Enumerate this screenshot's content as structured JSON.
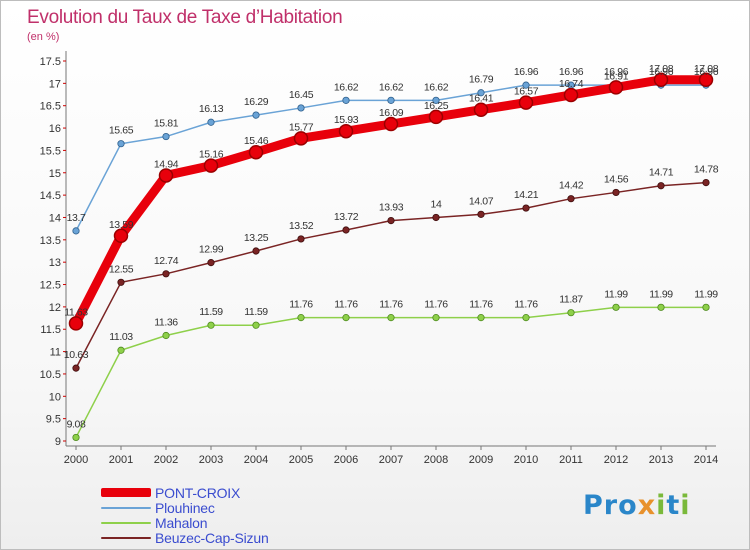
{
  "header": {
    "title": "Evolution du Taux de Taxe d’Habitation",
    "unit": "(en %)"
  },
  "logo": {
    "text": "Proxiti",
    "letters": [
      "P",
      "r",
      "o",
      "x",
      "i",
      "t",
      "i"
    ],
    "colors": [
      "#2a86c9",
      "#2a86c9",
      "#2a86c9",
      "#e8912c",
      "#7ab93a",
      "#2a86c9",
      "#7ab93a"
    ]
  },
  "chart_data": {
    "type": "line",
    "title": "Evolution du Taux de Taxe d’Habitation",
    "ylabel": "(en %)",
    "xlabel": "",
    "x": [
      "2000",
      "2001",
      "2002",
      "2003",
      "2004",
      "2005",
      "2006",
      "2007",
      "2008",
      "2009",
      "2010",
      "2011",
      "2012",
      "2013",
      "2014"
    ],
    "ylim": [
      9,
      17.5
    ],
    "yticks": [
      "9",
      "9.5",
      "10",
      "10.5",
      "11",
      "11.5",
      "12",
      "12.5",
      "13",
      "13.5",
      "14",
      "14.5",
      "15",
      "15.5",
      "16",
      "16.5",
      "17",
      "17.5"
    ],
    "grid": false,
    "legend": "bottom-left",
    "series": [
      {
        "name": "PONT-CROIX",
        "color": "#e8000b",
        "values": [
          11.63,
          13.59,
          14.94,
          15.16,
          15.46,
          15.77,
          15.93,
          16.09,
          16.25,
          16.41,
          16.57,
          16.74,
          16.91,
          17.08,
          17.08
        ],
        "labels": [
          "11.63",
          "13.59",
          "14.94",
          "15.16",
          "15.46",
          "15.77",
          "15.93",
          "16.09",
          "16.25",
          "16.41",
          "16.57",
          "16.74",
          "16.91",
          "17.08",
          "17.08"
        ]
      },
      {
        "name": "Plouhinec",
        "color": "#6aa3d6",
        "values": [
          13.7,
          15.65,
          15.81,
          16.13,
          16.29,
          16.45,
          16.62,
          16.62,
          16.62,
          16.79,
          16.96,
          16.96,
          16.96,
          16.96,
          16.96
        ],
        "labels": [
          "13.7",
          "15.65",
          "15.81",
          "16.13",
          "16.29",
          "16.45",
          "16.62",
          "16.62",
          "16.62",
          "16.79",
          "16.96",
          "16.96",
          "16.96",
          "16.96",
          "16.96"
        ]
      },
      {
        "name": "Mahalon",
        "color": "#8ed04a",
        "values": [
          9.08,
          11.03,
          11.36,
          11.59,
          11.59,
          11.76,
          11.76,
          11.76,
          11.76,
          11.76,
          11.76,
          11.87,
          11.99,
          11.99,
          11.99
        ],
        "labels": [
          "9.08",
          "11.03",
          "11.36",
          "11.59",
          "11.59",
          "11.76",
          "11.76",
          "11.76",
          "11.76",
          "11.76",
          "11.76",
          "11.87",
          "11.99",
          "11.99",
          "11.99"
        ]
      },
      {
        "name": "Beuzec-Cap-Sizun",
        "color": "#7a2424",
        "values": [
          10.63,
          12.55,
          12.74,
          12.99,
          13.25,
          13.52,
          13.72,
          13.93,
          14,
          14.07,
          14.21,
          14.42,
          14.56,
          14.71,
          14.78
        ],
        "labels": [
          "10.63",
          "12.55",
          "12.74",
          "12.99",
          "13.25",
          "13.52",
          "13.72",
          "13.93",
          "14",
          "14.07",
          "14.21",
          "14.42",
          "14.56",
          "14.71",
          "14.78"
        ]
      }
    ]
  }
}
